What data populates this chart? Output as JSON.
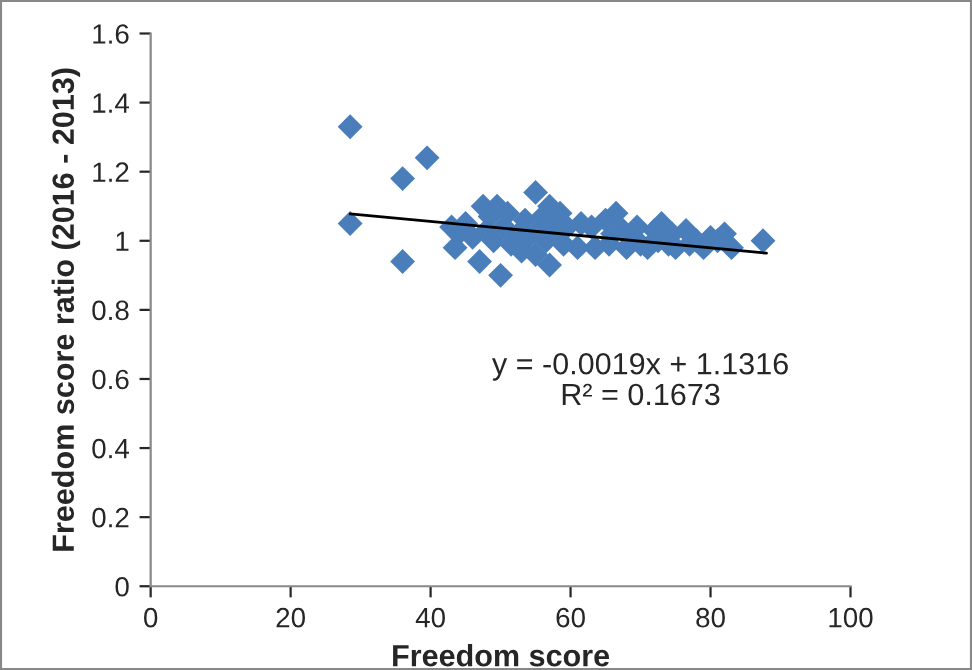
{
  "chart_data": {
    "type": "scatter",
    "xlabel": "Freedom score",
    "ylabel": "Freedom score ratio (2016 - 2013)",
    "xlim": [
      0,
      100
    ],
    "xticks": [
      0,
      20,
      40,
      60,
      80,
      100
    ],
    "ylim": [
      0,
      1.6
    ],
    "yticks": [
      0,
      0.2,
      0.4,
      0.6,
      0.8,
      1,
      1.2,
      1.4,
      1.6
    ],
    "grid": false,
    "legend": false,
    "series": [
      {
        "marker": "diamond",
        "color": "#4a7ebb",
        "x": [
          28.5,
          28.5,
          36,
          36,
          39.5,
          43,
          43.5,
          44,
          45,
          46,
          47,
          47.5,
          48,
          48.5,
          49,
          49.5,
          50,
          50.5,
          51,
          51.5,
          52.5,
          53,
          53.5,
          54,
          55,
          55,
          55.5,
          56,
          56.5,
          57,
          57,
          57.5,
          58,
          58.5,
          59,
          59.5,
          61,
          61.5,
          63,
          63.5,
          65,
          65.5,
          66,
          66.5,
          67.5,
          68,
          69,
          69.5,
          70,
          71,
          72,
          72.5,
          73,
          74,
          74.5,
          75,
          76.5,
          77,
          78,
          79,
          80,
          81,
          82,
          83,
          87.5
        ],
        "values": [
          1.33,
          1.05,
          1.18,
          0.94,
          1.24,
          1.04,
          0.98,
          1.02,
          1.05,
          1.01,
          0.94,
          1.1,
          1.03,
          1.07,
          1.0,
          1.1,
          0.9,
          1.04,
          1.08,
          0.99,
          1.02,
          0.97,
          1.06,
          1.01,
          1.14,
          0.96,
          1.03,
          1.07,
          1.0,
          0.93,
          1.1,
          1.05,
          1.02,
          1.08,
          0.99,
          1.04,
          0.98,
          1.05,
          1.04,
          0.98,
          1.06,
          0.99,
          1.02,
          1.08,
          1.03,
          0.98,
          1.01,
          1.04,
          0.99,
          0.98,
          1.03,
          1.0,
          1.05,
          0.99,
          1.02,
          0.98,
          1.03,
          0.99,
          1.0,
          0.98,
          1.01,
          1.0,
          1.02,
          0.98,
          1.0
        ]
      },
      {
        "type": "line",
        "marker": "none",
        "color": "#000000",
        "x": [
          28.5,
          88
        ],
        "values": [
          1.078,
          0.964
        ]
      }
    ],
    "annotations": [
      "y = -0.0019x + 1.1316\nR² = 0.1673"
    ]
  }
}
